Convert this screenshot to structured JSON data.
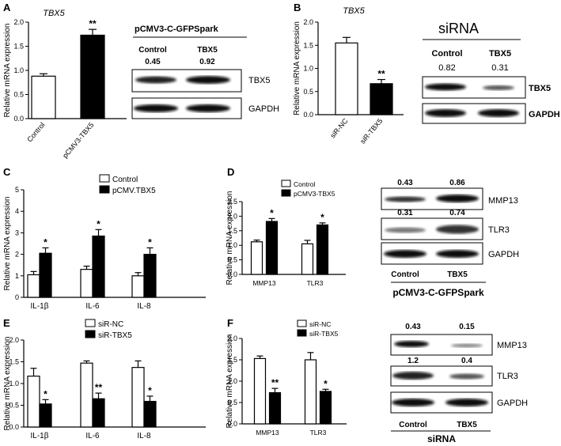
{
  "panel_labels": [
    "A",
    "B",
    "C",
    "D",
    "E",
    "F"
  ],
  "chart_data": [
    {
      "panel": "A",
      "type": "bar",
      "title": "TBX5",
      "ylabel": "Relative mRNA expression",
      "categories": [
        "Control",
        "pCMV3-TBX5"
      ],
      "values": [
        0.88,
        1.73
      ],
      "errors": [
        0.05,
        0.12
      ],
      "fill": [
        "white",
        "black"
      ],
      "significance": [
        "",
        "**"
      ],
      "ylim": [
        0,
        2.0
      ],
      "yticks": [
        "0.0",
        "0.5",
        "1.0",
        "1.5",
        "2.0"
      ]
    },
    {
      "panel": "B",
      "type": "bar",
      "title": "TBX5",
      "ylabel": "Relative mRNA expression",
      "categories": [
        "siR-NC",
        "siR-TBX5"
      ],
      "values": [
        1.55,
        0.67
      ],
      "errors": [
        0.12,
        0.09
      ],
      "fill": [
        "white",
        "black"
      ],
      "significance": [
        "",
        "**"
      ],
      "ylim": [
        0,
        2.0
      ],
      "yticks": [
        "0.0",
        "0.5",
        "1.0",
        "1.5",
        "2.0"
      ]
    },
    {
      "panel": "C",
      "type": "bar",
      "ylabel": "Relative mRNA expression",
      "categories": [
        "IL-1β",
        "IL-6",
        "IL-8"
      ],
      "series": [
        {
          "name": "Control",
          "fill": "white",
          "values": [
            1.05,
            1.3,
            1.0
          ],
          "errors": [
            0.15,
            0.15,
            0.15
          ]
        },
        {
          "name": "pCMV.TBX5",
          "fill": "black",
          "values": [
            2.05,
            2.85,
            2.0
          ],
          "errors": [
            0.25,
            0.3,
            0.3
          ]
        }
      ],
      "significance": [
        "*",
        "*",
        "*"
      ],
      "ylim": [
        0,
        5
      ],
      "yticks": [
        "0",
        "1",
        "2",
        "3",
        "4",
        "5"
      ],
      "legend": "top-right"
    },
    {
      "panel": "D",
      "type": "bar",
      "ylabel": "Relative mRNA expression",
      "categories": [
        "MMP13",
        "TLR3"
      ],
      "series": [
        {
          "name": "Control",
          "fill": "white",
          "values": [
            1.12,
            1.05
          ],
          "errors": [
            0.06,
            0.12
          ]
        },
        {
          "name": "pCMV3-TBX5",
          "fill": "black",
          "values": [
            1.82,
            1.7
          ],
          "errors": [
            0.1,
            0.07
          ]
        }
      ],
      "significance": [
        "*",
        "*"
      ],
      "ylim": [
        0,
        2.5
      ],
      "yticks": [
        "0.0",
        "0.5",
        "1.0",
        "1.5",
        "2.0",
        "2.5"
      ],
      "legend": "top-left"
    },
    {
      "panel": "E",
      "type": "bar",
      "ylabel": "Relative mRNA expression",
      "categories": [
        "IL-1β",
        "IL-6",
        "IL-8"
      ],
      "series": [
        {
          "name": "siR-NC",
          "fill": "white",
          "values": [
            1.17,
            1.47,
            1.37
          ],
          "errors": [
            0.18,
            0.05,
            0.15
          ]
        },
        {
          "name": "siR-TBX5",
          "fill": "black",
          "values": [
            0.53,
            0.65,
            0.59
          ],
          "errors": [
            0.1,
            0.13,
            0.12
          ]
        }
      ],
      "significance": [
        "*",
        "**",
        "*"
      ],
      "ylim": [
        0,
        2.0
      ],
      "yticks": [
        "0.0",
        "0.5",
        "1.0",
        "1.5",
        "2.0"
      ],
      "legend": "top-right"
    },
    {
      "panel": "F",
      "type": "bar",
      "ylabel": "Relative mRNA expression",
      "categories": [
        "MMP13",
        "TLR3"
      ],
      "series": [
        {
          "name": "siR-NC",
          "fill": "white",
          "values": [
            1.53,
            1.5
          ],
          "errors": [
            0.06,
            0.17
          ]
        },
        {
          "name": "siR-TBX5",
          "fill": "black",
          "values": [
            0.73,
            0.76
          ],
          "errors": [
            0.1,
            0.05
          ]
        }
      ],
      "significance": [
        "**",
        "*"
      ],
      "ylim": [
        0,
        2.0
      ],
      "yticks": [
        "0.0",
        "0.5",
        "1.0",
        "1.5",
        "2.0"
      ],
      "legend": "top-right"
    }
  ],
  "blots": {
    "A": {
      "title": "pCMV3-C-GFPSpark",
      "columns": [
        "Control",
        "TBX5"
      ],
      "values": [
        "0.45",
        "0.92"
      ],
      "rows": [
        "TBX5",
        "GAPDH"
      ]
    },
    "B": {
      "title": "siRNA",
      "columns": [
        "Control",
        "TBX5"
      ],
      "values": [
        "0.82",
        "0.31"
      ],
      "rows": [
        "TBX5",
        "GAPDH"
      ]
    },
    "D": {
      "footer": "pCMV3-C-GFPSpark",
      "columns": [
        "Control",
        "TBX5"
      ],
      "mmp13_values": [
        "0.43",
        "0.86"
      ],
      "tlr3_values": [
        "0.31",
        "0.74"
      ],
      "rows": [
        "MMP13",
        "TLR3",
        "GAPDH"
      ]
    },
    "F": {
      "footer": "siRNA",
      "columns": [
        "Control",
        "TBX5"
      ],
      "mmp13_values": [
        "0.43",
        "0.15"
      ],
      "tlr3_values": [
        "1.2",
        "0.4"
      ],
      "rows": [
        "MMP13",
        "TLR3",
        "GAPDH"
      ]
    }
  }
}
